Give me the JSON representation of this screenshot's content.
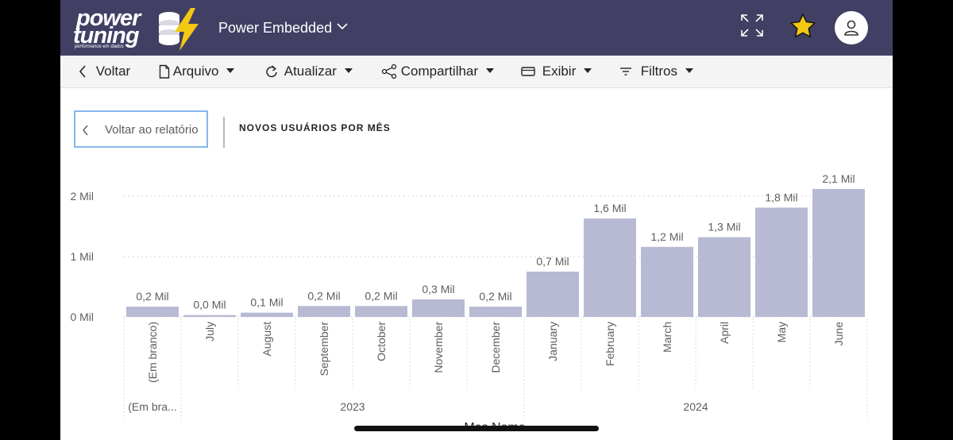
{
  "header": {
    "logo_line1": "power",
    "logo_line2": "tuning",
    "logo_tagline": "performance em dados",
    "app_title": "Power Embedded",
    "icons": [
      "expand-icon",
      "star-icon",
      "user-icon"
    ],
    "accent_color": "#413f64",
    "star_color": "#f2c811"
  },
  "toolbar": {
    "back_label": "Voltar",
    "file_label": "Arquivo",
    "refresh_label": "Atualizar",
    "share_label": "Compartilhar",
    "view_label": "Exibir",
    "filters_label": "Filtros"
  },
  "visual": {
    "back_to_report_label": "Voltar ao relatório",
    "title": "NOVOS USUÁRIOS POR MÊS"
  },
  "chart_data": {
    "type": "bar",
    "title": "NOVOS USUÁRIOS POR MÊS",
    "xlabel": "Mes Nome",
    "ylabel": "",
    "ylim": [
      0,
      2.1
    ],
    "y_ticks": [
      "0 Mil",
      "1 Mil",
      "2 Mil"
    ],
    "y_tick_values": [
      0,
      1,
      2
    ],
    "grid": true,
    "bar_color": "#b8b9d3",
    "categories": [
      "(Em branco)",
      "July",
      "August",
      "September",
      "October",
      "November",
      "December",
      "January",
      "February",
      "March",
      "April",
      "May",
      "June"
    ],
    "values": [
      0.17,
      0.03,
      0.07,
      0.18,
      0.18,
      0.29,
      0.17,
      0.75,
      1.63,
      1.16,
      1.32,
      1.81,
      2.12
    ],
    "data_labels": [
      "0,2 Mil",
      "0,0 Mil",
      "0,1 Mil",
      "0,2 Mil",
      "0,2 Mil",
      "0,3 Mil",
      "0,2 Mil",
      "0,7 Mil",
      "1,6 Mil",
      "1,2 Mil",
      "1,3 Mil",
      "1,8 Mil",
      "2,1 Mil"
    ],
    "groups": [
      {
        "label": "(Em bra...",
        "start": 0,
        "count": 1
      },
      {
        "label": "2023",
        "start": 1,
        "count": 6
      },
      {
        "label": "2024",
        "start": 7,
        "count": 6
      }
    ]
  }
}
